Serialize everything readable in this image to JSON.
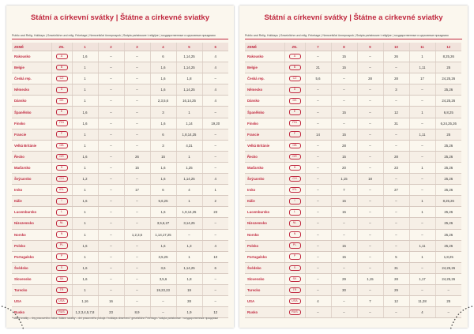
{
  "pages": [
    {
      "title": "Státní a církevní svátky | Štátne a cirkevné sviatky",
      "subtitle": "Public and Relig. Holidays | Gesetzliche und relig. Feiertage | Nemzetközi ünnepnapok | Święta państwowe i religijne | государственные и церковные праздники",
      "table": {
        "header": [
          "ZEMĚ",
          "ZN.",
          "1",
          "2",
          "3",
          "4",
          "5",
          "6"
        ],
        "rows": [
          [
            "Rakousko",
            "A",
            "1,6",
            "–",
            "–",
            "6",
            "1,14,25",
            "4"
          ],
          [
            "Belgie",
            "B",
            "1",
            "–",
            "–",
            "1,6",
            "1,14,25",
            "4"
          ],
          [
            "Česká rep.",
            "CZ",
            "1",
            "–",
            "–",
            "1,6",
            "1,8",
            "–"
          ],
          [
            "Německo",
            "D",
            "1",
            "–",
            "–",
            "1,6",
            "1,14,25",
            "4"
          ],
          [
            "Dánsko",
            "DK",
            "1",
            "–",
            "–",
            "2,3,5,6",
            "16,14,25",
            "4"
          ],
          [
            "Španělsko",
            "E",
            "1,6",
            "–",
            "–",
            "3",
            "1",
            "–"
          ],
          [
            "Finsko",
            "FIN",
            "1,6",
            "–",
            "–",
            "1,6",
            "1,14",
            "19,20"
          ],
          [
            "Francie",
            "F",
            "1",
            "–",
            "–",
            "6",
            "1,8,14,25",
            "–"
          ],
          [
            "Velká Británie",
            "GB",
            "1",
            "–",
            "–",
            "3",
            "4,31",
            "–"
          ],
          [
            "Řecko",
            "GR",
            "1,6",
            "–",
            "26",
            "15",
            "1",
            "–"
          ],
          [
            "Maďarsko",
            "H",
            "1",
            "–",
            "15",
            "1,6",
            "1,25",
            "–"
          ],
          [
            "Švýcarsko",
            "CH",
            "1,2",
            "–",
            "–",
            "1,6",
            "1,14,25",
            "4"
          ],
          [
            "Irsko",
            "IRL",
            "1",
            "–",
            "17",
            "6",
            "4",
            "1"
          ],
          [
            "Itálie",
            "I",
            "1,6",
            "–",
            "–",
            "5,6,25",
            "1",
            "2"
          ],
          [
            "Lucembursko",
            "L",
            "1",
            "–",
            "–",
            "1,6",
            "1,9,14,25",
            "23"
          ],
          [
            "Nizozemsko",
            "NL",
            "1",
            "–",
            "–",
            "3,5,6,27",
            "3,14,25",
            "–"
          ],
          [
            "Norsko",
            "N",
            "1",
            "–",
            "1,2,3,5",
            "1,14,17,25",
            "–",
            "–"
          ],
          [
            "Polsko",
            "PL",
            "1,6",
            "–",
            "–",
            "1,6",
            "1,3",
            "4"
          ],
          [
            "Portugalsko",
            "P",
            "1",
            "–",
            "–",
            "3,5,25",
            "1",
            "10"
          ],
          [
            "Švédsko",
            "S",
            "1,6",
            "–",
            "–",
            "3,6",
            "1,14,25",
            "6"
          ],
          [
            "Slovensko",
            "SK",
            "1,6",
            "–",
            "–",
            "3,5,6",
            "1,8",
            "–"
          ],
          [
            "Turecko",
            "TR",
            "1",
            "–",
            "–",
            "19,23,23",
            "19",
            "–"
          ],
          [
            "USA",
            "USA",
            "1,16",
            "16",
            "–",
            "–",
            "28",
            "–"
          ],
          [
            "Rusko",
            "RUS",
            "1,2,3,4,5,7,8",
            "23",
            "8,9",
            "–",
            "1,9",
            "12"
          ]
        ]
      },
      "footnote": "* státní svátky – dny pracovního volna / štátne sviatky – dni pracovného pokoja / holidays observed / gesetzliche Feiertage / święta państwowe / государственные праздники"
    },
    {
      "title": "Státní a církevní svátky | Štátne a cirkevné sviatky",
      "subtitle": "Public and Relig. Holidays | Gesetzliche und relig. Feiertage | Nemzetközi ünnepnapok | Święta państwowe i religijne | государственные и церковные праздники",
      "table": {
        "header": [
          "ZEMĚ",
          "ZN.",
          "7",
          "8",
          "9",
          "10",
          "11",
          "12"
        ],
        "rows": [
          [
            "Rakousko",
            "A",
            "–",
            "15",
            "–",
            "26",
            "1",
            "8,25,26"
          ],
          [
            "Belgie",
            "B",
            "21",
            "15",
            "–",
            "–",
            "1,11",
            "25"
          ],
          [
            "Česká rep.",
            "CZ",
            "5,6",
            "–",
            "28",
            "28",
            "17",
            "24,25,26"
          ],
          [
            "Německo",
            "D",
            "–",
            "–",
            "–",
            "3",
            "–",
            "25,26"
          ],
          [
            "Dánsko",
            "DK",
            "–",
            "–",
            "–",
            "–",
            "–",
            "24,25,26"
          ],
          [
            "Španělsko",
            "E",
            "–",
            "15",
            "–",
            "12",
            "1",
            "6,8,25"
          ],
          [
            "Finsko",
            "FIN",
            "–",
            "–",
            "–",
            "31",
            "–",
            "6,24,25,26"
          ],
          [
            "Francie",
            "F",
            "14",
            "15",
            "–",
            "–",
            "1,11",
            "25"
          ],
          [
            "Velká Británie",
            "GB",
            "–",
            "28",
            "–",
            "–",
            "–",
            "25,26"
          ],
          [
            "Řecko",
            "GR",
            "–",
            "15",
            "–",
            "28",
            "–",
            "25,26"
          ],
          [
            "Maďarsko",
            "H",
            "–",
            "20",
            "–",
            "23",
            "1",
            "25,26"
          ],
          [
            "Švýcarsko",
            "CH",
            "–",
            "1,15",
            "18",
            "–",
            "–",
            "25,26"
          ],
          [
            "Irsko",
            "IRL",
            "–",
            "7",
            "–",
            "27",
            "–",
            "25,26"
          ],
          [
            "Itálie",
            "I",
            "–",
            "15",
            "–",
            "–",
            "1",
            "8,25,26"
          ],
          [
            "Lucembursko",
            "L",
            "–",
            "15",
            "–",
            "–",
            "1",
            "25,26"
          ],
          [
            "Nizozemsko",
            "NL",
            "–",
            "–",
            "–",
            "–",
            "–",
            "25,26"
          ],
          [
            "Norsko",
            "N",
            "–",
            "–",
            "–",
            "–",
            "–",
            "25,26"
          ],
          [
            "Polsko",
            "PL",
            "–",
            "15",
            "–",
            "–",
            "1,11",
            "25,26"
          ],
          [
            "Portugalsko",
            "P",
            "–",
            "15",
            "–",
            "5",
            "1",
            "1,8,25"
          ],
          [
            "Švédsko",
            "S",
            "–",
            "–",
            "–",
            "31",
            "–",
            "24,25,26"
          ],
          [
            "Slovensko",
            "SK",
            "–",
            "29",
            "1,15",
            "28",
            "1,17",
            "24,25,26"
          ],
          [
            "Turecko",
            "TR",
            "–",
            "30",
            "–",
            "29",
            "–",
            "–"
          ],
          [
            "USA",
            "USA",
            "4",
            "–",
            "7",
            "12",
            "11,28",
            "25"
          ],
          [
            "Rusko",
            "RUS",
            "–",
            "–",
            "–",
            "–",
            "4",
            "–"
          ]
        ]
      }
    }
  ]
}
